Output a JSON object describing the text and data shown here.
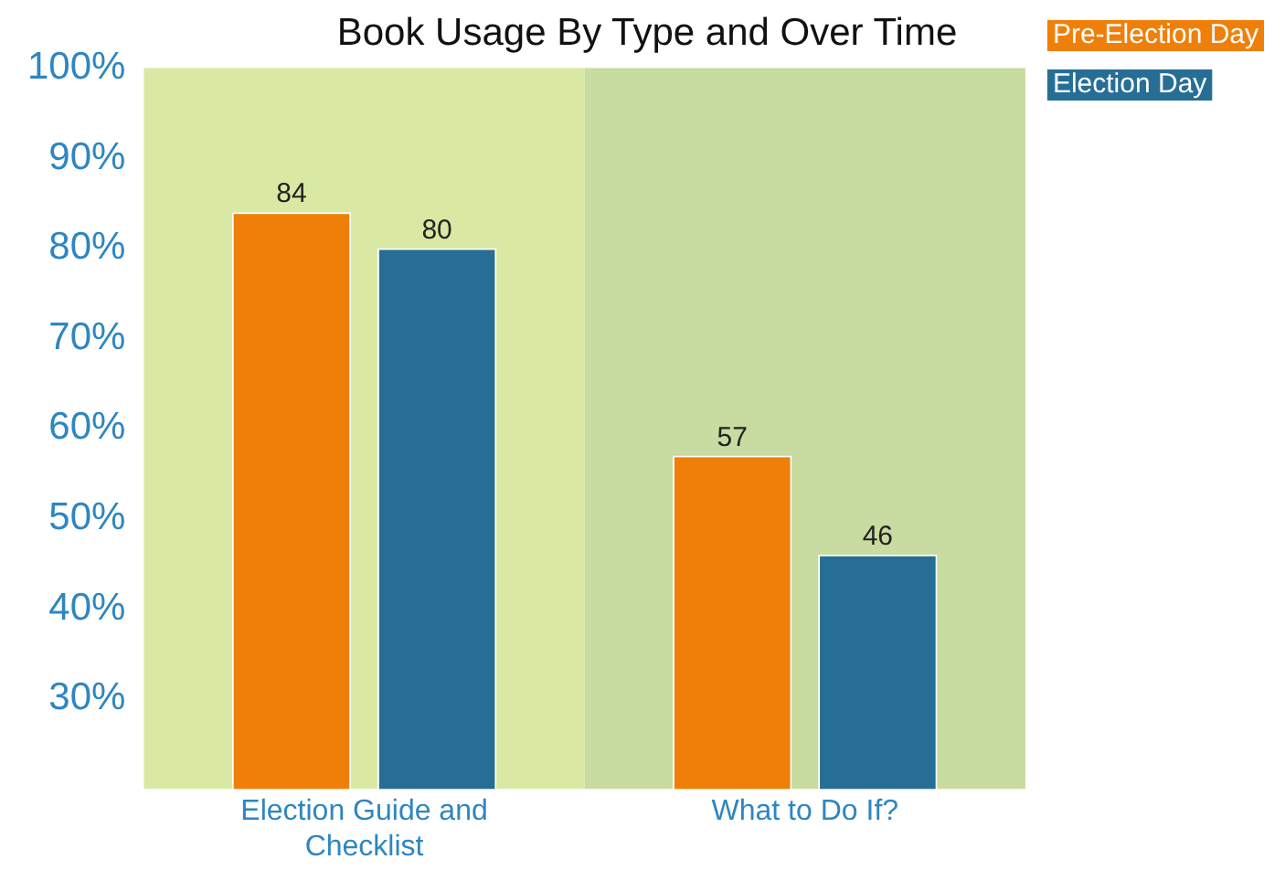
{
  "chart_data": {
    "type": "bar",
    "title": "Book Usage By Type and Over Time",
    "categories": [
      "Election Guide and Checklist",
      "What to Do If?"
    ],
    "series": [
      {
        "name": "Pre-Election Day",
        "color": "#f07f09",
        "values": [
          84,
          57
        ]
      },
      {
        "name": "Election Day",
        "color": "#276e96",
        "values": [
          80,
          46
        ]
      }
    ],
    "ylim": [
      20,
      100
    ],
    "yticks": [
      {
        "value": 30,
        "label": "30%"
      },
      {
        "value": 40,
        "label": "40%"
      },
      {
        "value": 50,
        "label": "50%"
      },
      {
        "value": 60,
        "label": "60%"
      },
      {
        "value": 70,
        "label": "70%"
      },
      {
        "value": 80,
        "label": "80%"
      },
      {
        "value": 90,
        "label": "90%"
      },
      {
        "value": 100,
        "label": "100%"
      }
    ],
    "bands": [
      {
        "axis": "x",
        "from": "Election Guide and Checklist",
        "to": "Election Guide and Checklist",
        "color": "#d9e9a4"
      },
      {
        "axis": "x",
        "from": "What to Do If?",
        "to": "What to Do If?",
        "color": "#c8dba0"
      }
    ],
    "data_labels": true,
    "grid": false,
    "legend": "right"
  }
}
